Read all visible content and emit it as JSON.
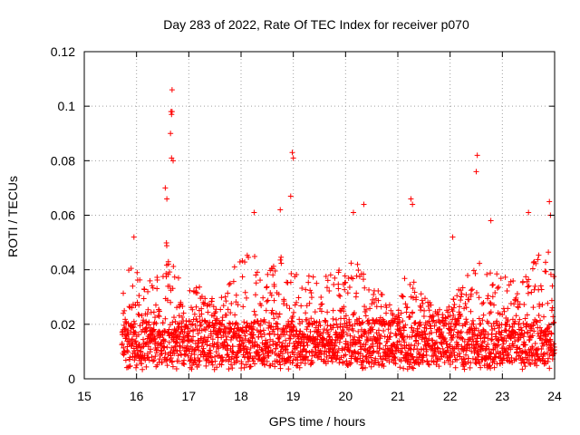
{
  "chart_data": {
    "type": "scatter",
    "title": "Day 283 of 2022, Rate Of TEC Index for receiver p070",
    "xlabel": "GPS time / hours",
    "ylabel": "ROTI / TECUs",
    "xlim": [
      15,
      24
    ],
    "ylim": [
      0,
      0.12
    ],
    "x_ticks": [
      15,
      16,
      17,
      18,
      19,
      20,
      21,
      22,
      23,
      24
    ],
    "x_tick_labels": [
      "15",
      "16",
      "17",
      "18",
      "19",
      "20",
      "21",
      "22",
      "23",
      "24"
    ],
    "y_ticks": [
      0,
      0.02,
      0.04,
      0.06,
      0.08,
      0.1,
      0.12
    ],
    "y_tick_labels": [
      "0",
      "0.02",
      "0.04",
      "0.06",
      "0.08",
      "0.1",
      "0.12"
    ],
    "grid": true,
    "marker": "+",
    "color": "#ff0000",
    "series": [
      {
        "name": "ROTI",
        "data_start_hour": 15.72,
        "data_end_hour": 24.0,
        "typical_baseline_range": [
          0.005,
          0.02
        ],
        "notable_points": [
          {
            "x": 16.68,
            "y": 0.106
          },
          {
            "x": 16.66,
            "y": 0.098
          },
          {
            "x": 16.68,
            "y": 0.098
          },
          {
            "x": 16.67,
            "y": 0.097
          },
          {
            "x": 16.65,
            "y": 0.09
          },
          {
            "x": 16.67,
            "y": 0.081
          },
          {
            "x": 16.7,
            "y": 0.08
          },
          {
            "x": 18.98,
            "y": 0.083
          },
          {
            "x": 19.0,
            "y": 0.081
          },
          {
            "x": 18.95,
            "y": 0.067
          },
          {
            "x": 22.52,
            "y": 0.082
          },
          {
            "x": 22.5,
            "y": 0.076
          },
          {
            "x": 16.55,
            "y": 0.07
          },
          {
            "x": 16.58,
            "y": 0.066
          },
          {
            "x": 21.25,
            "y": 0.066
          },
          {
            "x": 21.28,
            "y": 0.064
          },
          {
            "x": 20.35,
            "y": 0.064
          },
          {
            "x": 23.9,
            "y": 0.065
          },
          {
            "x": 18.25,
            "y": 0.061
          },
          {
            "x": 20.15,
            "y": 0.061
          },
          {
            "x": 23.5,
            "y": 0.061
          },
          {
            "x": 23.92,
            "y": 0.06
          },
          {
            "x": 22.78,
            "y": 0.058
          },
          {
            "x": 18.75,
            "y": 0.062
          },
          {
            "x": 15.95,
            "y": 0.052
          },
          {
            "x": 22.05,
            "y": 0.052
          }
        ]
      }
    ]
  }
}
